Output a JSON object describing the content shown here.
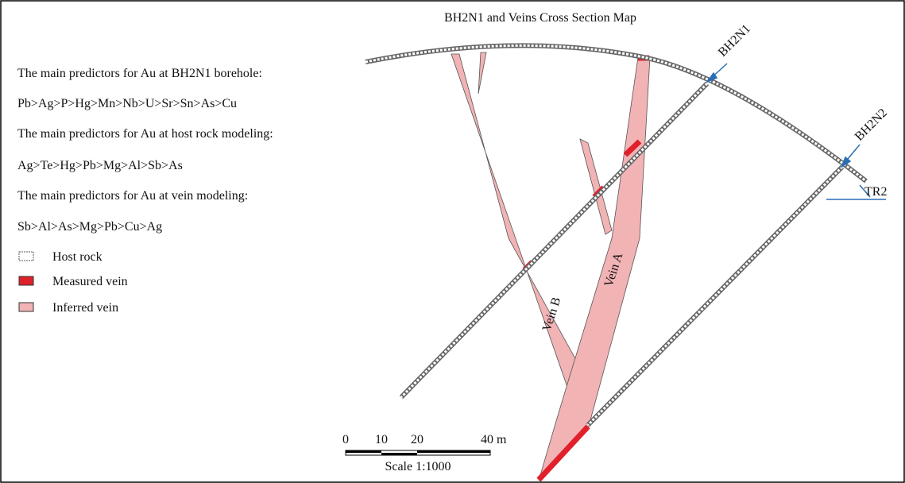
{
  "title": "BH2N1 and Veins Cross Section Map",
  "predictors": [
    {
      "heading": "The main predictors for Au at BH2N1 borehole:",
      "sequence": "Pb>Ag>P>Hg>Mn>Nb>U>Sr>Sn>As>Cu"
    },
    {
      "heading": "The main predictors for Au at host rock modeling:",
      "sequence": "Ag>Te>Hg>Pb>Mg>Al>Sb>As"
    },
    {
      "heading": "The main predictors for Au at vein modeling:",
      "sequence": "Sb>Al>As>Mg>Pb>Cu>Ag"
    }
  ],
  "legend": [
    "Host rock",
    "Measured vein",
    "Inferred vein"
  ],
  "labels": {
    "bh2n1": "BH2N1",
    "bh2n2": "BH2N2",
    "tr2": "TR2",
    "vein_a": "Vein A",
    "vein_b": "Vein B"
  },
  "scale": {
    "ticks": [
      "0",
      "10",
      "20",
      "40 m"
    ],
    "caption": "Scale 1:1000"
  }
}
